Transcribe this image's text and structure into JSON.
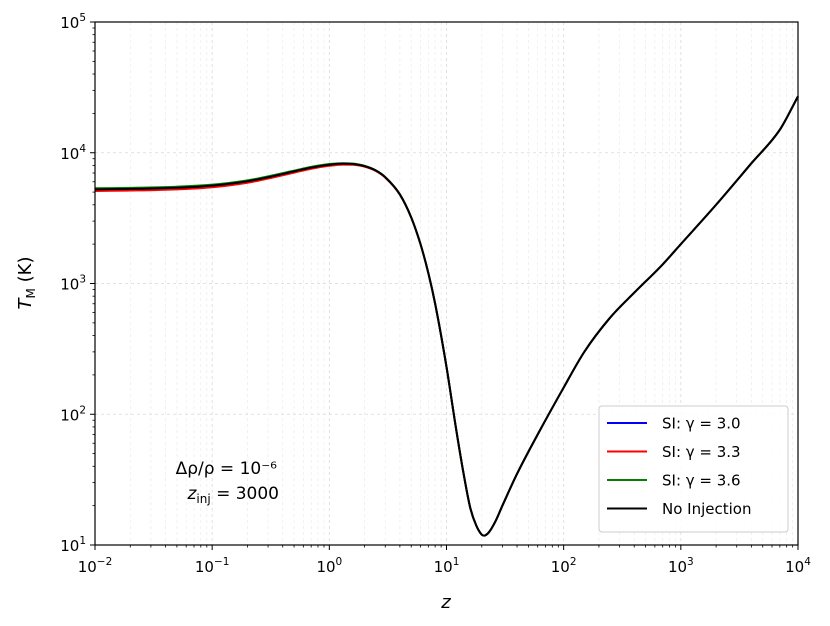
{
  "chart_data": {
    "type": "line",
    "xscale": "log",
    "yscale": "log",
    "xlim": [
      0.01,
      10000
    ],
    "ylim": [
      10,
      100000
    ],
    "xlabel": "z",
    "ylabel": "T_M (K)",
    "grid": true,
    "legend_position": "lower-right",
    "x_ticks": [
      {
        "base": "10",
        "exp": "−2"
      },
      {
        "base": "10",
        "exp": "−1"
      },
      {
        "base": "10",
        "exp": "0"
      },
      {
        "base": "10",
        "exp": "1"
      },
      {
        "base": "10",
        "exp": "2"
      },
      {
        "base": "10",
        "exp": "3"
      },
      {
        "base": "10",
        "exp": "4"
      }
    ],
    "y_ticks": [
      {
        "base": "10",
        "exp": "1"
      },
      {
        "base": "10",
        "exp": "2"
      },
      {
        "base": "10",
        "exp": "3"
      },
      {
        "base": "10",
        "exp": "4"
      },
      {
        "base": "10",
        "exp": "5"
      }
    ],
    "annotations": {
      "line1": "Δρ/ρ = 10⁻⁶",
      "line2": "z_inj = 3000"
    },
    "x": [
      0.01,
      0.02,
      0.05,
      0.1,
      0.2,
      0.3,
      0.5,
      0.7,
      1.0,
      1.3,
      1.6,
      2.0,
      2.5,
      3.0,
      4.0,
      5.0,
      6.0,
      7.0,
      8.0,
      10.0,
      12.0,
      14.0,
      16.0,
      18.0,
      20.0,
      21.0,
      23.0,
      26.0,
      30.0,
      40.0,
      60.0,
      100.0,
      150.0,
      250.0,
      400.0,
      700.0,
      1000.0,
      2000.0,
      4000.0,
      7000.0,
      10000.0
    ],
    "series": [
      {
        "name": "SI: γ = 3.0",
        "color": "#0000ff",
        "y": [
          5250,
          5290,
          5400,
          5600,
          6050,
          6500,
          7200,
          7700,
          8100,
          8250,
          8200,
          7900,
          7300,
          6500,
          4800,
          3200,
          2000,
          1200,
          700,
          230,
          80,
          35,
          19,
          14,
          12,
          11.8,
          12.5,
          15,
          20,
          35,
          70,
          160,
          300,
          550,
          850,
          1400,
          2000,
          4000,
          8300,
          15000,
          27000
        ]
      },
      {
        "name": "SI: γ = 3.3",
        "color": "#ff0000",
        "y": [
          5100,
          5140,
          5250,
          5450,
          5900,
          6350,
          7050,
          7550,
          7950,
          8120,
          8100,
          7820,
          7250,
          6450,
          4780,
          3190,
          1995,
          1198,
          699,
          230,
          80,
          35,
          19,
          14,
          12,
          11.8,
          12.5,
          15,
          20,
          35,
          70,
          160,
          300,
          550,
          850,
          1400,
          2000,
          4000,
          8300,
          15000,
          27000
        ]
      },
      {
        "name": "SI: γ = 3.6",
        "color": "#008000",
        "y": [
          5350,
          5390,
          5500,
          5700,
          6150,
          6600,
          7300,
          7800,
          8200,
          8320,
          8260,
          7950,
          7330,
          6520,
          4810,
          3205,
          2002,
          1201,
          701,
          230,
          80,
          35,
          19,
          14,
          12,
          11.8,
          12.5,
          15,
          20,
          35,
          70,
          160,
          300,
          550,
          850,
          1400,
          2000,
          4000,
          8300,
          15000,
          27000
        ]
      },
      {
        "name": "No Injection",
        "color": "#000000",
        "y": [
          5250,
          5290,
          5400,
          5600,
          6050,
          6500,
          7200,
          7700,
          8100,
          8250,
          8200,
          7900,
          7300,
          6500,
          4800,
          3200,
          2000,
          1200,
          700,
          230,
          80,
          35,
          19,
          14,
          12,
          11.8,
          12.5,
          15,
          20,
          35,
          70,
          160,
          300,
          550,
          850,
          1400,
          2000,
          4000,
          8300,
          15000,
          27000
        ]
      }
    ]
  }
}
